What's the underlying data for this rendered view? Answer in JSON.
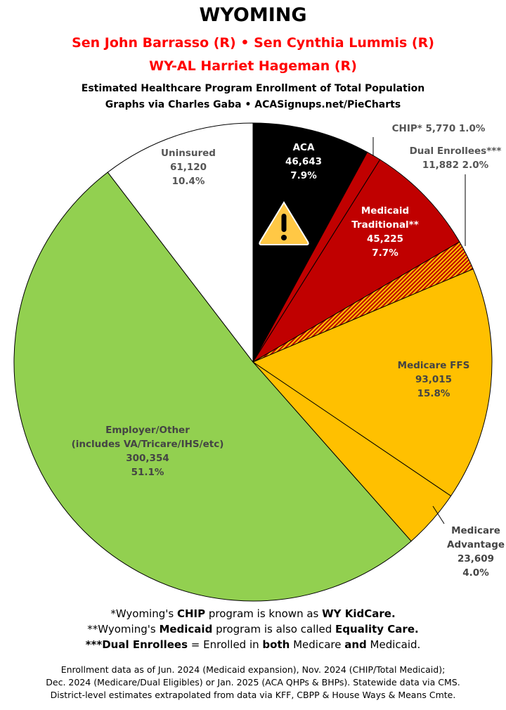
{
  "header": {
    "title": "WYOMING",
    "senators": "Sen John Barrasso (R) • Sen Cynthia Lummis (R)",
    "representative": "WY-AL Harriet Hageman (R)",
    "subtitle": "Estimated Healthcare Program Enrollment of Total Population",
    "credit": "Graphs via Charles Gaba  •  ACASignups.net/PieCharts"
  },
  "chart_data": {
    "type": "pie",
    "title": "Estimated Healthcare Program Enrollment of Total Population",
    "start": "12 o'clock, clockwise",
    "slices": [
      {
        "label": "ACA",
        "value": 46643,
        "percent": "7.9%",
        "color": "#000000"
      },
      {
        "label": "CHIP*",
        "value": 5770,
        "percent": "1.0%",
        "color": "#c00000"
      },
      {
        "label": "Medicaid Traditional**",
        "value": 45225,
        "percent": "7.7%",
        "color": "#c00000"
      },
      {
        "label": "Dual Enrollees***",
        "value": 11882,
        "percent": "2.0%",
        "color": "hatch #c00000/#ffc000"
      },
      {
        "label": "Medicare FFS",
        "value": 93015,
        "percent": "15.8%",
        "color": "#ffc000"
      },
      {
        "label": "Medicare Advantage",
        "value": 23609,
        "percent": "4.0%",
        "color": "#ffc000"
      },
      {
        "label": "Employer/Other (includes VA/Tricare/IHS/etc)",
        "value": 300354,
        "percent": "51.1%",
        "color": "#92d050"
      },
      {
        "label": "Uninsured",
        "value": 61120,
        "percent": "10.4%",
        "color": "#ffffff"
      }
    ],
    "labels": {
      "aca": [
        "ACA",
        "46,643",
        "7.9%"
      ],
      "chip": "CHIP* 5,770 1.0%",
      "medicaid": [
        "Medicaid",
        "Traditional**",
        "45,225",
        "7.7%"
      ],
      "dual": [
        "Dual Enrollees***",
        "11,882 2.0%"
      ],
      "ffs": [
        "Medicare FFS",
        "93,015",
        "15.8%"
      ],
      "ma": [
        "Medicare",
        "Advantage",
        "23,609",
        "4.0%"
      ],
      "employer": [
        "Employer/Other",
        "(includes VA/Tricare/IHS/etc)",
        "300,354",
        "51.1%"
      ],
      "uninsured": [
        "Uninsured",
        "61,120",
        "10.4%"
      ]
    },
    "icon": "warning-triangle-icon on ACA slice"
  },
  "footnotes": {
    "chip": [
      "*Wyoming's ",
      "CHIP",
      " program is known as ",
      "WY KidCare."
    ],
    "medicaid": [
      "**Wyoming's ",
      "Medicaid",
      " program is also called ",
      "Equality Care."
    ],
    "dual": [
      "***Dual Enrollees",
      " = Enrolled in ",
      "both",
      " Medicare ",
      "and",
      " Medicaid."
    ]
  },
  "source": [
    "Enrollment data as of Jun. 2024 (Medicaid expansion), Nov. 2024 (CHIP/Total Medicaid);",
    "Dec. 2024 (Medicare/Dual Eligibles) or Jan. 2025 (ACA QHPs & BHPs). Statewide data via CMS.",
    "District-level estimates extrapolated from data via KFF, CBPP & House Ways & Means Cmte."
  ]
}
